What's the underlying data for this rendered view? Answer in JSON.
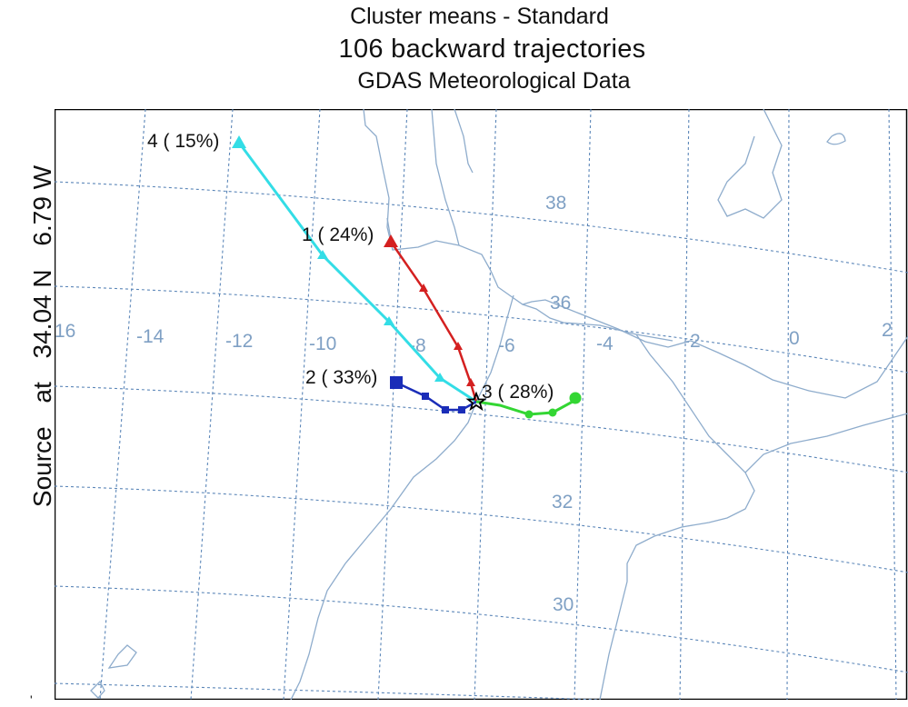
{
  "title": {
    "line1": "Cluster means - Standard",
    "line2": "106 backward trajectories",
    "line3": "GDAS Meteorological Data"
  },
  "side_label": {
    "word1": "Source",
    "word2": "at",
    "lat": "34.04 N",
    "lon": "6.79 W"
  },
  "tick_mark": "'",
  "colors": {
    "grid": "#5b86b8",
    "coast": "#8eaccc",
    "cluster_1": "#d42020",
    "cluster_2": "#1a2db8",
    "cluster_3": "#33d633",
    "cluster_4": "#33dde6",
    "source": "#000000"
  },
  "map": {
    "longitude_labels": [
      "16",
      "-14",
      "-12",
      "-10",
      "-8",
      "-6",
      "-4",
      "-2",
      "0",
      "2"
    ],
    "latitude_labels": [
      "38",
      "36",
      "32",
      "30"
    ],
    "source_marker": "star",
    "source_point": {
      "lat": 34.04,
      "lon": -6.79
    },
    "clusters": [
      {
        "id": 1,
        "label": "1 ( 24%)",
        "percent": 24,
        "color": "#d42020",
        "marker": "triangle"
      },
      {
        "id": 2,
        "label": "2 ( 33%)",
        "percent": 33,
        "color": "#1a2db8",
        "marker": "square"
      },
      {
        "id": 3,
        "label": "3 ( 28%)",
        "percent": 28,
        "color": "#33d633",
        "marker": "circle"
      },
      {
        "id": 4,
        "label": "4 ( 15%)",
        "percent": 15,
        "color": "#33dde6",
        "marker": "triangle"
      }
    ]
  }
}
